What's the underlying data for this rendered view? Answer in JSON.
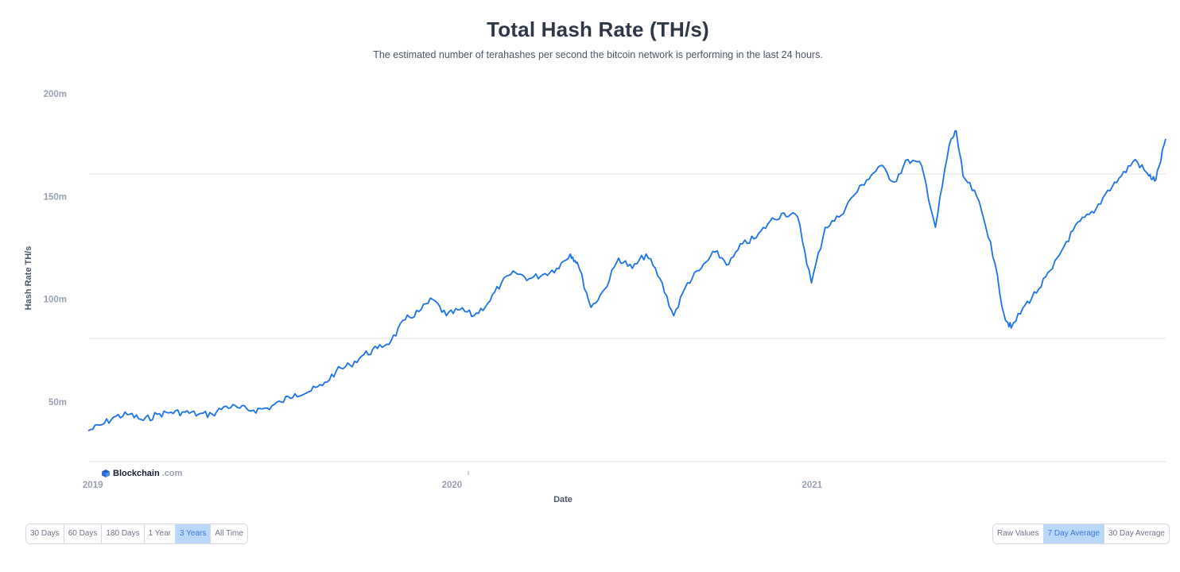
{
  "header": {
    "title": "Total Hash Rate (TH/s)",
    "subtitle": "The estimated number of terahashes per second the bitcoin network is performing in the last 24 hours."
  },
  "brand": {
    "name": "Blockchain",
    "suffix": ".com"
  },
  "range_buttons": [
    {
      "label": "30 Days",
      "active": false
    },
    {
      "label": "60 Days",
      "active": false
    },
    {
      "label": "180 Days",
      "active": false
    },
    {
      "label": "1 Year",
      "active": false
    },
    {
      "label": "3 Years",
      "active": true
    },
    {
      "label": "All Time",
      "active": false
    }
  ],
  "mode_buttons": [
    {
      "label": "Raw Values",
      "active": false
    },
    {
      "label": "7 Day Average",
      "active": true
    },
    {
      "label": "30 Day Average",
      "active": false
    }
  ],
  "colors": {
    "line": "#1a73e8",
    "grid": "#dfe3e8",
    "active_button": "#b9d8fb"
  },
  "chart_data": {
    "type": "line",
    "title": "Total Hash Rate (TH/s)",
    "xlabel": "Date",
    "ylabel": "Hash Rate TH/s",
    "y_tick_values": [
      50000000,
      100000000,
      150000000,
      200000000
    ],
    "y_tick_labels": [
      "50m",
      "100m",
      "150m",
      "200m"
    ],
    "ylim": [
      20000000,
      200000000
    ],
    "xlim": [
      "2018-12-29",
      "2021-12-28"
    ],
    "x_ticks": [
      {
        "date": "2019-01-01",
        "label": "2019"
      },
      {
        "date": "2020-01-01",
        "label": "2020"
      },
      {
        "date": "2021-01-01",
        "label": "2021"
      }
    ],
    "grid": true,
    "legend": "none",
    "series": [
      {
        "points": [
          [
            "2018-12-29",
            36
          ],
          [
            "2019-01-12",
            39
          ],
          [
            "2019-01-26",
            43
          ],
          [
            "2019-02-09",
            44
          ],
          [
            "2019-02-23",
            41
          ],
          [
            "2019-03-09",
            44
          ],
          [
            "2019-03-23",
            45
          ],
          [
            "2019-04-06",
            45
          ],
          [
            "2019-04-20",
            44
          ],
          [
            "2019-05-04",
            44
          ],
          [
            "2019-05-18",
            48
          ],
          [
            "2019-06-01",
            47
          ],
          [
            "2019-06-15",
            46
          ],
          [
            "2019-06-29",
            47
          ],
          [
            "2019-07-13",
            50
          ],
          [
            "2019-07-27",
            54
          ],
          [
            "2019-08-10",
            55
          ],
          [
            "2019-08-24",
            58
          ],
          [
            "2019-09-07",
            65
          ],
          [
            "2019-09-21",
            68
          ],
          [
            "2019-10-05",
            73
          ],
          [
            "2019-10-19",
            76
          ],
          [
            "2019-11-02",
            80
          ],
          [
            "2019-11-16",
            90
          ],
          [
            "2019-11-30",
            94
          ],
          [
            "2019-12-14",
            100
          ],
          [
            "2019-12-28",
            92
          ],
          [
            "2020-01-11",
            95
          ],
          [
            "2020-01-25",
            92
          ],
          [
            "2020-02-08",
            98
          ],
          [
            "2020-02-22",
            108
          ],
          [
            "2020-03-07",
            113
          ],
          [
            "2020-03-21",
            110
          ],
          [
            "2020-04-04",
            112
          ],
          [
            "2020-04-18",
            115
          ],
          [
            "2020-05-02",
            122
          ],
          [
            "2020-05-09",
            118
          ],
          [
            "2020-05-23",
            96
          ],
          [
            "2020-06-06",
            105
          ],
          [
            "2020-06-20",
            120
          ],
          [
            "2020-07-04",
            115
          ],
          [
            "2020-07-18",
            122
          ],
          [
            "2020-08-01",
            110
          ],
          [
            "2020-08-15",
            92
          ],
          [
            "2020-08-29",
            108
          ],
          [
            "2020-09-12",
            115
          ],
          [
            "2020-09-26",
            123
          ],
          [
            "2020-10-10",
            117
          ],
          [
            "2020-10-24",
            127
          ],
          [
            "2020-11-07",
            130
          ],
          [
            "2020-11-21",
            138
          ],
          [
            "2020-12-05",
            142
          ],
          [
            "2020-12-19",
            140
          ],
          [
            "2021-01-02",
            108
          ],
          [
            "2021-01-16",
            135
          ],
          [
            "2021-01-30",
            140
          ],
          [
            "2021-02-13",
            150
          ],
          [
            "2021-02-27",
            158
          ],
          [
            "2021-03-13",
            165
          ],
          [
            "2021-03-27",
            157
          ],
          [
            "2021-04-10",
            168
          ],
          [
            "2021-04-24",
            165
          ],
          [
            "2021-05-08",
            135
          ],
          [
            "2021-05-22",
            175
          ],
          [
            "2021-05-29",
            182
          ],
          [
            "2021-06-05",
            160
          ],
          [
            "2021-06-19",
            150
          ],
          [
            "2021-07-03",
            128
          ],
          [
            "2021-07-17",
            92
          ],
          [
            "2021-07-24",
            86
          ],
          [
            "2021-08-07",
            97
          ],
          [
            "2021-08-21",
            105
          ],
          [
            "2021-09-04",
            115
          ],
          [
            "2021-09-18",
            128
          ],
          [
            "2021-10-02",
            138
          ],
          [
            "2021-10-16",
            142
          ],
          [
            "2021-10-30",
            153
          ],
          [
            "2021-11-13",
            160
          ],
          [
            "2021-11-27",
            168
          ],
          [
            "2021-12-11",
            160
          ],
          [
            "2021-12-18",
            158
          ],
          [
            "2021-12-28",
            178
          ]
        ],
        "values_unit": "m TH/s"
      }
    ]
  }
}
